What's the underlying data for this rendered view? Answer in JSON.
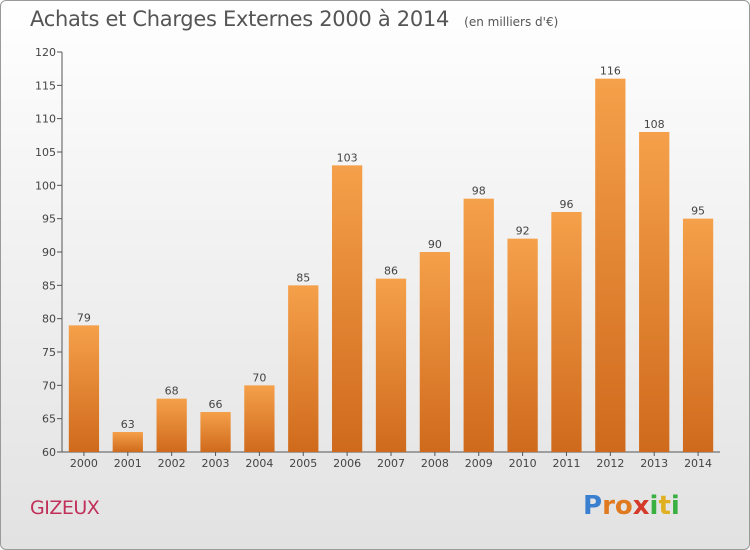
{
  "header": {
    "title": "Achats et Charges Externes 2000 à 2014",
    "unit": "(en milliers d'€)"
  },
  "footer": {
    "commune": "GIZEUX",
    "logo": [
      "P",
      "r",
      "o",
      "x",
      "i",
      "t",
      "i"
    ]
  },
  "colors": {
    "bar_top": "#f5a04a",
    "bar_bottom": "#cf6a1c",
    "commune": "#c0305a",
    "logo": [
      "#3a7fd0",
      "#e07a20",
      "#e07a20",
      "#d43a2a",
      "#3ab040",
      "#e0b020",
      "#3ab040"
    ]
  },
  "chart_data": {
    "type": "bar",
    "categories": [
      "2000",
      "2001",
      "2002",
      "2003",
      "2004",
      "2005",
      "2006",
      "2007",
      "2008",
      "2009",
      "2010",
      "2011",
      "2012",
      "2013",
      "2014"
    ],
    "values": [
      79,
      63,
      68,
      66,
      70,
      85,
      103,
      86,
      90,
      98,
      92,
      96,
      116,
      108,
      95
    ],
    "ylim": [
      60,
      120
    ],
    "yticks": [
      60,
      65,
      70,
      75,
      80,
      85,
      90,
      95,
      100,
      105,
      110,
      115,
      120
    ],
    "grid": false,
    "data_labels": true
  }
}
